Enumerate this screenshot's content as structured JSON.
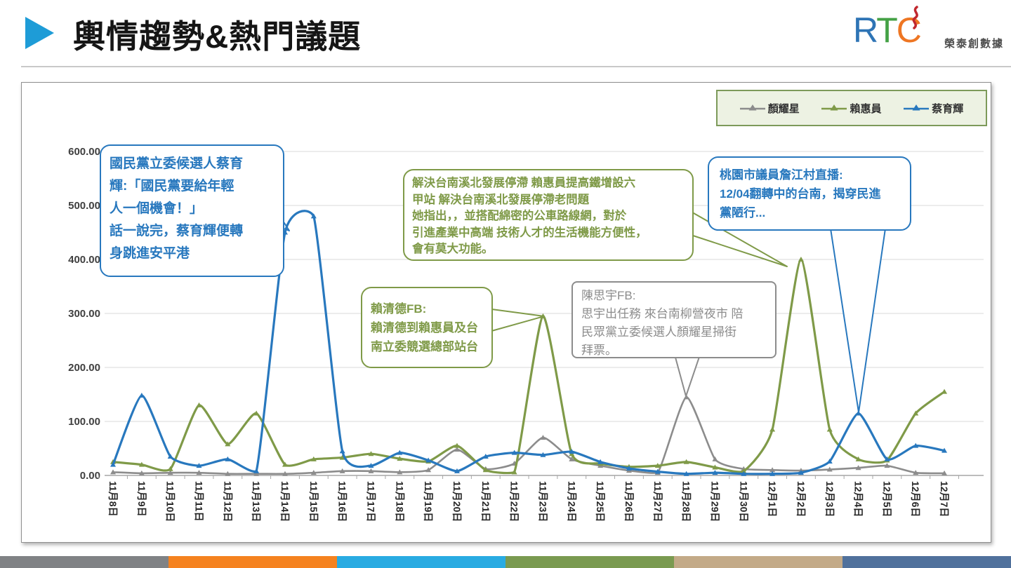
{
  "header": {
    "title": "輿情趨勢&熱門議題",
    "accent_color": "#1e9cd7",
    "logo": {
      "letters": [
        "R",
        "T",
        "C"
      ],
      "letter_colors": [
        "#2e74b5",
        "#44a145",
        "#ee7623"
      ],
      "flame_color": "#c1272d",
      "name": "榮泰創數據"
    }
  },
  "chart_data": {
    "type": "line",
    "title": "",
    "xlabel": "",
    "ylabel": "",
    "ylim": [
      0,
      600
    ],
    "ytick_step": 100,
    "ytick_labels": [
      "0.00",
      "100.00",
      "200.00",
      "300.00",
      "400.00",
      "500.00",
      "600.00"
    ],
    "grid": true,
    "legend_position": "top-right",
    "line_style": "smooth",
    "marker": "triangle",
    "categories": [
      "11月8日",
      "11月9日",
      "11月10日",
      "11月11日",
      "11月12日",
      "11月13日",
      "11月14日",
      "11月15日",
      "11月16日",
      "11月17日",
      "11月18日",
      "11月19日",
      "11月20日",
      "11月21日",
      "11月22日",
      "11月23日",
      "11月24日",
      "11月25日",
      "11月26日",
      "11月27日",
      "11月28日",
      "11月29日",
      "11月30日",
      "12月1日",
      "12月2日",
      "12月3日",
      "12月4日",
      "12月5日",
      "12月6日",
      "12月7日"
    ],
    "series": [
      {
        "name": "顏耀星",
        "color": "#8c8c8c",
        "values": [
          6,
          4,
          5,
          5,
          3,
          3,
          3,
          5,
          8,
          8,
          6,
          10,
          48,
          12,
          22,
          70,
          30,
          18,
          9,
          5,
          145,
          30,
          12,
          10,
          9,
          11,
          14,
          18,
          5,
          4
        ]
      },
      {
        "name": "賴惠員",
        "color": "#7f9a48",
        "values": [
          25,
          20,
          12,
          130,
          58,
          115,
          20,
          30,
          33,
          40,
          31,
          26,
          55,
          10,
          6,
          295,
          40,
          22,
          16,
          18,
          25,
          15,
          8,
          85,
          400,
          85,
          30,
          28,
          115,
          155
        ]
      },
      {
        "name": "蔡育輝",
        "color": "#2878be",
        "values": [
          20,
          148,
          35,
          18,
          30,
          8,
          450,
          480,
          45,
          18,
          42,
          28,
          8,
          35,
          42,
          38,
          44,
          25,
          13,
          7,
          3,
          5,
          3,
          3,
          5,
          26,
          115,
          30,
          55,
          46
        ]
      }
    ]
  },
  "annotations": [
    {
      "color": "#2878be",
      "text": "國民黨立委候選人蔡育\n輝:「國民黨要給年輕\n人一個機會！」\n話一說完，蔡育輝便轉\n身跳進安平港"
    },
    {
      "color": "#7f9a48",
      "text": "解決台南溪北發展停滯 賴惠員提高鐵增設六\n甲站 解決台南溪北發展停滯老問題\n她指出，，並搭配綿密的公車路線網，對於\n引進產業中高端 技術人才的生活機能方便性，\n會有莫大功能。"
    },
    {
      "color": "#2878be",
      "text": "桃園市議員詹江村直播:\n12/04翻轉中的台南，揭穿民進\n黨陋行..."
    },
    {
      "color": "#7f9a48",
      "text": "賴清德FB:\n賴清德到賴惠員及台\n南立委競選總部站台"
    },
    {
      "color": "#8c8c8c",
      "text": "陳思宇FB:\n思宇出任務 來台南柳營夜市 陪\n民眾黨立委候選人顏耀星掃街\n拜票。"
    }
  ],
  "footer": {
    "stripe_colors": [
      "#808285",
      "#f5821f",
      "#29abe2",
      "#7a9a50",
      "#c3aa88",
      "#50719c"
    ]
  }
}
